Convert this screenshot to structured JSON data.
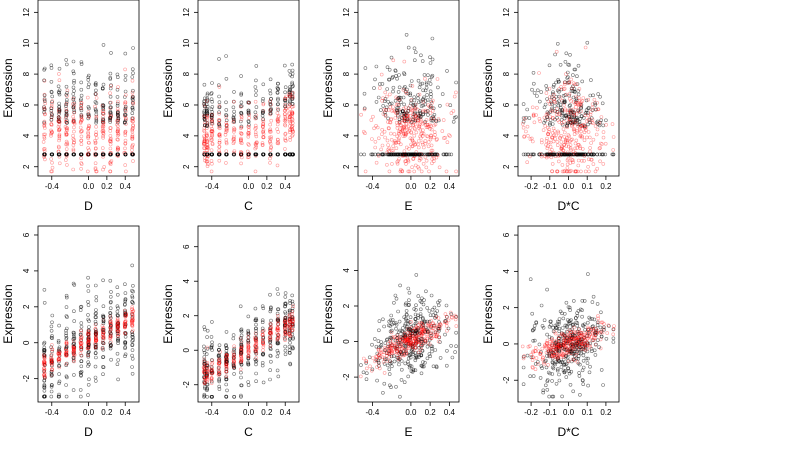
{
  "figure": {
    "grid": false,
    "black_color": "#000000",
    "red_color": "#ff0000",
    "black_meaning": "",
    "red_meaning": ""
  },
  "chart_data": [
    {
      "type": "scatter",
      "xlabel": "D",
      "ylabel": "Expression",
      "xlim": [
        -0.55,
        0.55
      ],
      "ylim": [
        1.4,
        12.8
      ],
      "x_ticks": [
        -0.4,
        0.0,
        0.2,
        0.4
      ],
      "x_tick_labels": [
        "-0.4",
        "0.0",
        "0.2",
        "0.4"
      ],
      "y_ticks": [
        2,
        4,
        6,
        8,
        10,
        12
      ],
      "y_tick_labels": [
        "2",
        "4",
        "6",
        "8",
        "10",
        "12"
      ],
      "grid": false,
      "x_levels": [
        -0.48,
        -0.4,
        -0.32,
        -0.24,
        -0.16,
        -0.08,
        0.0,
        0.08,
        0.16,
        0.24,
        0.32,
        0.4,
        0.48
      ],
      "floor": 2.8,
      "pattern": "floor",
      "slope": 0,
      "intercept": 4.2,
      "spread": 1.7
    },
    {
      "type": "scatter",
      "xlabel": "C",
      "ylabel": "Expression",
      "xlim": [
        -0.55,
        0.55
      ],
      "ylim": [
        1.4,
        12.8
      ],
      "x_ticks": [
        -0.4,
        0.0,
        0.2,
        0.4
      ],
      "x_tick_labels": [
        "-0.4",
        "0.0",
        "0.2",
        "0.4"
      ],
      "y_ticks": [
        2,
        4,
        6,
        8,
        10,
        12
      ],
      "y_tick_labels": [
        "2",
        "4",
        "6",
        "8",
        "10",
        "12"
      ],
      "grid": false,
      "x_levels": [
        -0.48,
        -0.45,
        -0.4,
        -0.32,
        -0.24,
        -0.16,
        -0.08,
        0.0,
        0.08,
        0.16,
        0.24,
        0.32,
        0.4,
        0.45,
        0.48
      ],
      "floor": 2.8,
      "pattern": "floor",
      "slope": 3.0,
      "intercept": 4.0,
      "spread": 1.3
    },
    {
      "type": "scatter",
      "xlabel": "E",
      "ylabel": "Expression",
      "xlim": [
        -0.55,
        0.5
      ],
      "ylim": [
        1.4,
        12.8
      ],
      "x_ticks": [
        -0.4,
        0.0,
        0.2,
        0.4
      ],
      "x_tick_labels": [
        "-0.4",
        "0.0",
        "0.2",
        "0.4"
      ],
      "y_ticks": [
        2,
        4,
        6,
        8,
        10,
        12
      ],
      "y_tick_labels": [
        "2",
        "4",
        "6",
        "8",
        "10",
        "12"
      ],
      "grid": false,
      "x_levels": null,
      "floor": 2.8,
      "pattern": "floor",
      "slope": 0,
      "intercept": 4.3,
      "spread": 1.8
    },
    {
      "type": "scatter",
      "xlabel": "D*C",
      "ylabel": "Expression",
      "xlim": [
        -0.27,
        0.27
      ],
      "ylim": [
        1.4,
        12.8
      ],
      "x_ticks": [
        -0.2,
        -0.1,
        0.0,
        0.1,
        0.2
      ],
      "x_tick_labels": [
        "-0.2",
        "-0.1",
        "0.0",
        "0.1",
        "0.2"
      ],
      "y_ticks": [
        2,
        4,
        6,
        8,
        10,
        12
      ],
      "y_tick_labels": [
        "2",
        "4",
        "6",
        "8",
        "10",
        "12"
      ],
      "grid": false,
      "x_levels": null,
      "floor": 2.8,
      "pattern": "floor_centered",
      "slope": 0,
      "intercept": 4.2,
      "spread": 1.7
    },
    {
      "type": "scatter",
      "xlabel": "D",
      "ylabel": "Expression",
      "xlim": [
        -0.55,
        0.55
      ],
      "ylim": [
        -3.3,
        6.5
      ],
      "x_ticks": [
        -0.4,
        0.0,
        0.2,
        0.4
      ],
      "x_tick_labels": [
        "-0.4",
        "0.0",
        "0.2",
        "0.4"
      ],
      "y_ticks": [
        -2,
        0,
        2,
        4,
        6
      ],
      "y_tick_labels": [
        "-2",
        "0",
        "2",
        "4",
        "6"
      ],
      "grid": false,
      "x_levels": [
        -0.48,
        -0.4,
        -0.32,
        -0.24,
        -0.16,
        -0.08,
        0.0,
        0.08,
        0.16,
        0.24,
        0.32,
        0.4,
        0.48
      ],
      "pattern": "linear",
      "slope": 2.7,
      "intercept": 0.1,
      "spread": 1.3
    },
    {
      "type": "scatter",
      "xlabel": "C",
      "ylabel": "Expression",
      "xlim": [
        -0.55,
        0.55
      ],
      "ylim": [
        -3.0,
        7.2
      ],
      "x_ticks": [
        -0.4,
        0.0,
        0.2,
        0.4
      ],
      "x_tick_labels": [
        "-0.4",
        "0.0",
        "0.2",
        "0.4"
      ],
      "y_ticks": [
        -2,
        0,
        2,
        4,
        6
      ],
      "y_tick_labels": [
        "-2",
        "0",
        "2",
        "4",
        "6"
      ],
      "grid": false,
      "x_levels": [
        -0.48,
        -0.45,
        -0.4,
        -0.32,
        -0.24,
        -0.16,
        -0.08,
        0.0,
        0.08,
        0.16,
        0.24,
        0.32,
        0.4,
        0.45,
        0.48
      ],
      "pattern": "linear",
      "slope": 3.2,
      "intercept": 0.1,
      "spread": 1.1
    },
    {
      "type": "scatter",
      "xlabel": "E",
      "ylabel": "Expression",
      "xlim": [
        -0.55,
        0.5
      ],
      "ylim": [
        -3.4,
        6.5
      ],
      "x_ticks": [
        -0.4,
        0.0,
        0.2,
        0.4
      ],
      "x_tick_labels": [
        "-0.4",
        "0.0",
        "0.2",
        "0.4"
      ],
      "y_ticks": [
        -2,
        0,
        2,
        4
      ],
      "y_tick_labels": [
        "-2",
        "0",
        "2",
        "4"
      ],
      "grid": false,
      "x_levels": null,
      "pattern": "linear",
      "slope": 2.6,
      "intercept": 0.1,
      "spread": 1.2
    },
    {
      "type": "scatter",
      "xlabel": "D*C",
      "ylabel": "Expression",
      "xlim": [
        -0.27,
        0.27
      ],
      "ylim": [
        -3.2,
        6.5
      ],
      "x_ticks": [
        -0.2,
        -0.1,
        0.0,
        0.1,
        0.2
      ],
      "x_tick_labels": [
        "-0.2",
        "-0.1",
        "0.0",
        "0.1",
        "0.2"
      ],
      "y_ticks": [
        -2,
        0,
        2,
        4,
        6
      ],
      "y_tick_labels": [
        "-2",
        "0",
        "2",
        "4",
        "6"
      ],
      "grid": false,
      "x_levels": null,
      "pattern": "linear",
      "slope": 3.5,
      "intercept": 0.0,
      "spread": 1.2
    }
  ]
}
